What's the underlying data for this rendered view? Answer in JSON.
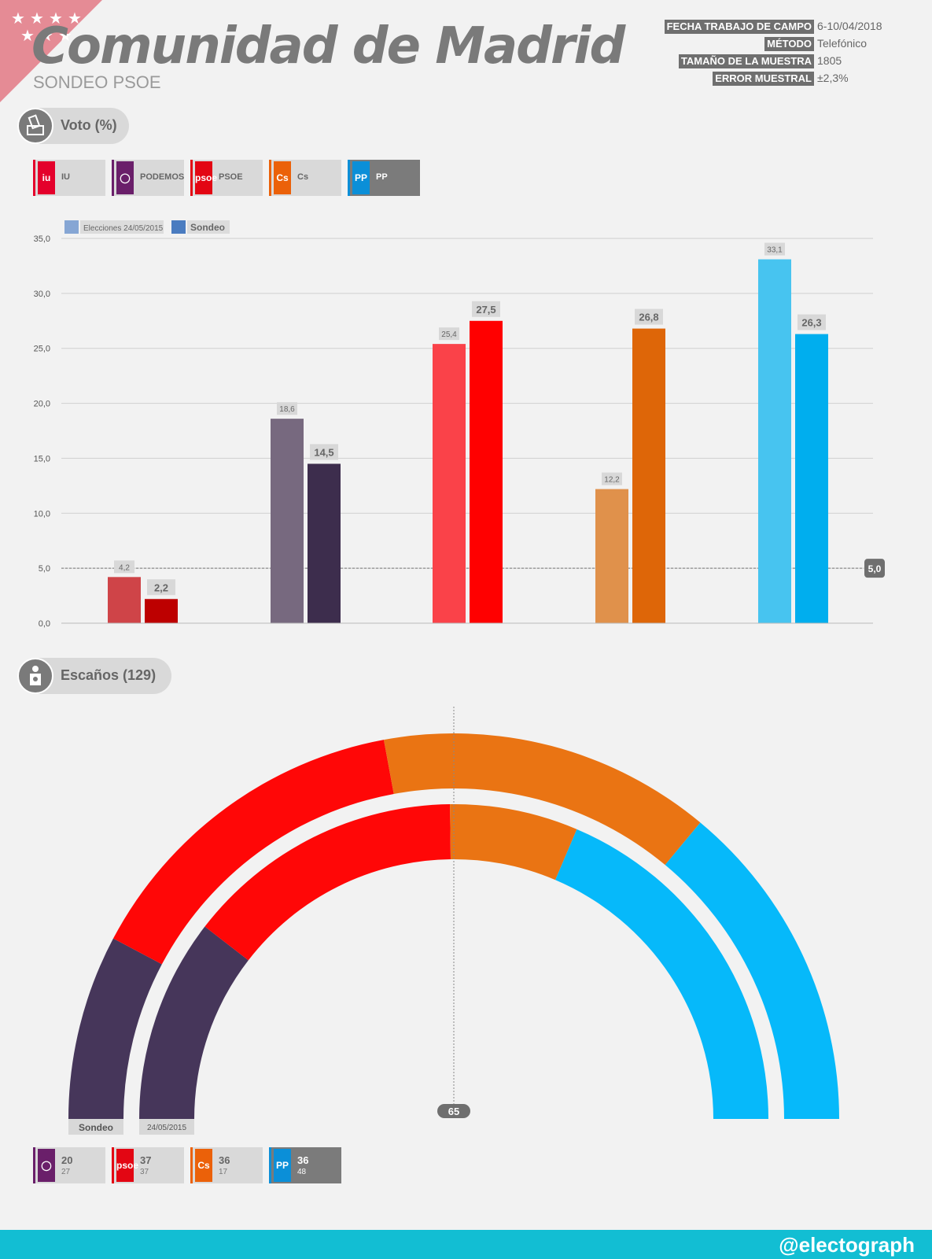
{
  "header": {
    "title": "Comunidad de Madrid",
    "subtitle": "SONDEO PSOE",
    "meta": [
      {
        "key": "FECHA TRABAJO DE CAMPO",
        "value": "6-10/04/2018"
      },
      {
        "key": "MÉTODO",
        "value": "Telefónico"
      },
      {
        "key": "TAMAÑO DE LA MUESTRA",
        "value": "1805"
      },
      {
        "key": "ERROR MUESTRAL",
        "value": "±2,3%"
      }
    ]
  },
  "sections": {
    "vote": "Voto (%)",
    "seats": "Escaños (129)"
  },
  "parties": [
    {
      "name": "IU",
      "color": "#e4002b",
      "logo": "iu"
    },
    {
      "name": "PODEMOS",
      "color": "#6a1f6a",
      "logo": "◯"
    },
    {
      "name": "PSOE",
      "color": "#e30613",
      "logo": "psoe"
    },
    {
      "name": "Cs",
      "color": "#eb6109",
      "logo": "Cs"
    },
    {
      "name": "PP",
      "color": "#0b8fd8",
      "logo": "PP"
    }
  ],
  "chart_data": {
    "type": "bar",
    "categories": [
      "IU",
      "PODEMOS",
      "PSOE",
      "Cs",
      "PP"
    ],
    "series": [
      {
        "name": "Elecciones 24/05/2015",
        "values": [
          4.2,
          18.6,
          25.4,
          12.2,
          33.1
        ],
        "colors": [
          "#cf4448",
          "#77697f",
          "#fa4249",
          "#e0914b",
          "#47c4f0"
        ]
      },
      {
        "name": "Sondeo",
        "values": [
          2.2,
          14.5,
          27.5,
          26.8,
          26.3
        ],
        "colors": [
          "#bd0000",
          "#3d2d4d",
          "#ff0000",
          "#de6608",
          "#00aeee"
        ]
      }
    ],
    "legend_colors": [
      "#86a6d4",
      "#4a7cc0"
    ],
    "ylim": [
      0,
      35
    ],
    "yticks": [
      "0,0",
      "5,0",
      "10,0",
      "15,0",
      "20,0",
      "25,0",
      "30,0",
      "35,0"
    ],
    "threshold": {
      "value": 5.0,
      "label": "5,0"
    },
    "value_labels": [
      [
        "4,2",
        "18,6",
        "25,4",
        "12,2",
        "33,1"
      ],
      [
        "2,2",
        "14,5",
        "27,5",
        "26,8",
        "26,3"
      ]
    ],
    "grid": true
  },
  "seats": {
    "total": 129,
    "majority": "65",
    "outer_label": "Sondeo",
    "inner_label": "24/05/2015",
    "order": [
      "PODEMOS",
      "PSOE",
      "Cs",
      "PP"
    ],
    "colors": [
      "#46365a",
      "#ff0707",
      "#ea7413",
      "#06b9fa"
    ],
    "sondeo": [
      20,
      37,
      36,
      36
    ],
    "elecciones_2015": [
      27,
      37,
      17,
      48
    ],
    "sondeo_labels": [
      "20",
      "37",
      "36",
      "36"
    ],
    "elecciones_labels": [
      "27",
      "37",
      "17",
      "48"
    ]
  },
  "footer": {
    "handle": "@electograph"
  }
}
